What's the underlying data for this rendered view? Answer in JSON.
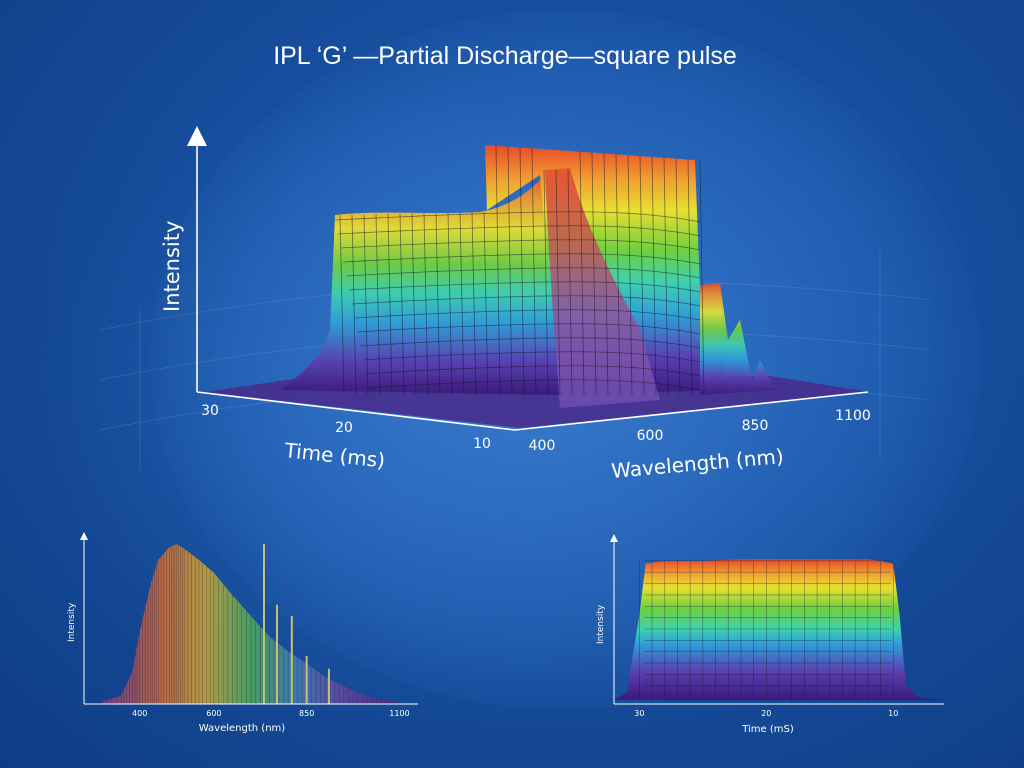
{
  "title": "IPL ‘G’ —Partial Discharge—square pulse",
  "colors": {
    "background": "#1a56a8",
    "colormap": [
      "#3a1a7a",
      "#5a3fb0",
      "#2f9fd8",
      "#3fd0b0",
      "#6fd040",
      "#e8e030",
      "#f0a030",
      "#e84a2a"
    ]
  },
  "chart_data": [
    {
      "type": "surface",
      "ylabel": "Intensity",
      "xlabel": "Time (ms)",
      "zlabel": "Wavelength (nm)",
      "time_ticks": [
        "30",
        "20",
        "10"
      ],
      "wavelength_ticks": [
        "400",
        "600",
        "850",
        "1100"
      ],
      "time_range_ms": [
        10,
        30
      ],
      "wavelength_range_nm": [
        400,
        1100
      ],
      "profile_at_mid_time": {
        "wavelength_nm": [
          400,
          450,
          480,
          500,
          530,
          560,
          600,
          650,
          700,
          750,
          800,
          850,
          900,
          950,
          1000,
          1050,
          1100
        ],
        "relative_intensity": [
          0.02,
          0.35,
          0.85,
          1.0,
          0.97,
          0.9,
          0.78,
          0.62,
          0.5,
          0.38,
          0.3,
          0.22,
          0.15,
          0.1,
          0.06,
          0.03,
          0.01
        ]
      }
    },
    {
      "type": "area",
      "ylabel": "Intensity",
      "xlabel": "Wavelength (nm)",
      "x_ticks": [
        "400",
        "600",
        "850",
        "1100"
      ],
      "xlim": [
        250,
        1150
      ],
      "x": [
        300,
        350,
        380,
        400,
        430,
        450,
        480,
        500,
        520,
        560,
        600,
        650,
        700,
        750,
        800,
        850,
        900,
        950,
        1000,
        1050,
        1100
      ],
      "y": [
        0.02,
        0.05,
        0.2,
        0.45,
        0.75,
        0.9,
        0.98,
        1.0,
        0.97,
        0.9,
        0.82,
        0.68,
        0.55,
        0.42,
        0.33,
        0.25,
        0.17,
        0.11,
        0.06,
        0.03,
        0.01
      ],
      "peaks": [
        {
          "x": 735,
          "y": 1.0
        },
        {
          "x": 770,
          "y": 0.62
        },
        {
          "x": 810,
          "y": 0.55
        },
        {
          "x": 850,
          "y": 0.3
        },
        {
          "x": 910,
          "y": 0.22
        }
      ]
    },
    {
      "type": "area",
      "ylabel": "Intensity",
      "xlabel": "Time (mS)",
      "x_ticks": [
        "30",
        "20",
        "10"
      ],
      "xlim": [
        32,
        6
      ],
      "x": [
        32,
        31,
        30,
        29.5,
        28,
        25,
        22,
        20,
        18,
        15,
        12,
        11,
        10,
        9.5,
        9,
        8,
        6
      ],
      "y": [
        0,
        0.05,
        0.6,
        0.96,
        0.98,
        0.98,
        0.99,
        0.99,
        0.99,
        0.99,
        0.99,
        0.98,
        0.96,
        0.6,
        0.1,
        0.02,
        0
      ]
    }
  ]
}
